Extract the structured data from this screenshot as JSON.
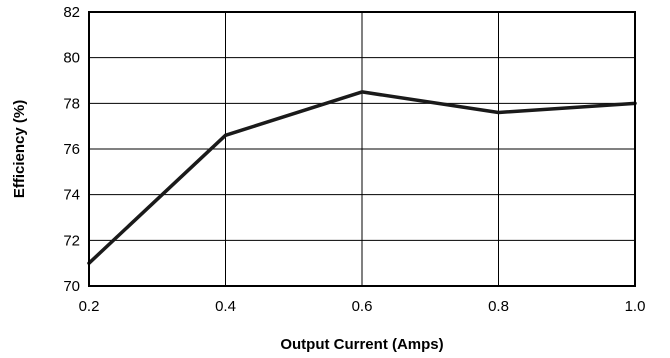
{
  "chart_data": {
    "type": "line",
    "title": "",
    "xlabel": "Output Current (Amps)",
    "ylabel": "Efficiency (%)",
    "xlim": [
      0.2,
      1.0
    ],
    "ylim": [
      70,
      82
    ],
    "x_ticks": [
      "0.2",
      "0.4",
      "0.6",
      "0.8",
      "1.0"
    ],
    "y_ticks": [
      "70",
      "72",
      "74",
      "76",
      "78",
      "80",
      "82"
    ],
    "grid": true,
    "series": [
      {
        "x": [
          0.2,
          0.4,
          0.6,
          0.8,
          1.0
        ],
        "values": [
          71.0,
          76.6,
          78.5,
          77.6,
          78.0
        ]
      }
    ],
    "colors": {
      "line": "#1a1a1a",
      "grid": "#000000"
    }
  }
}
